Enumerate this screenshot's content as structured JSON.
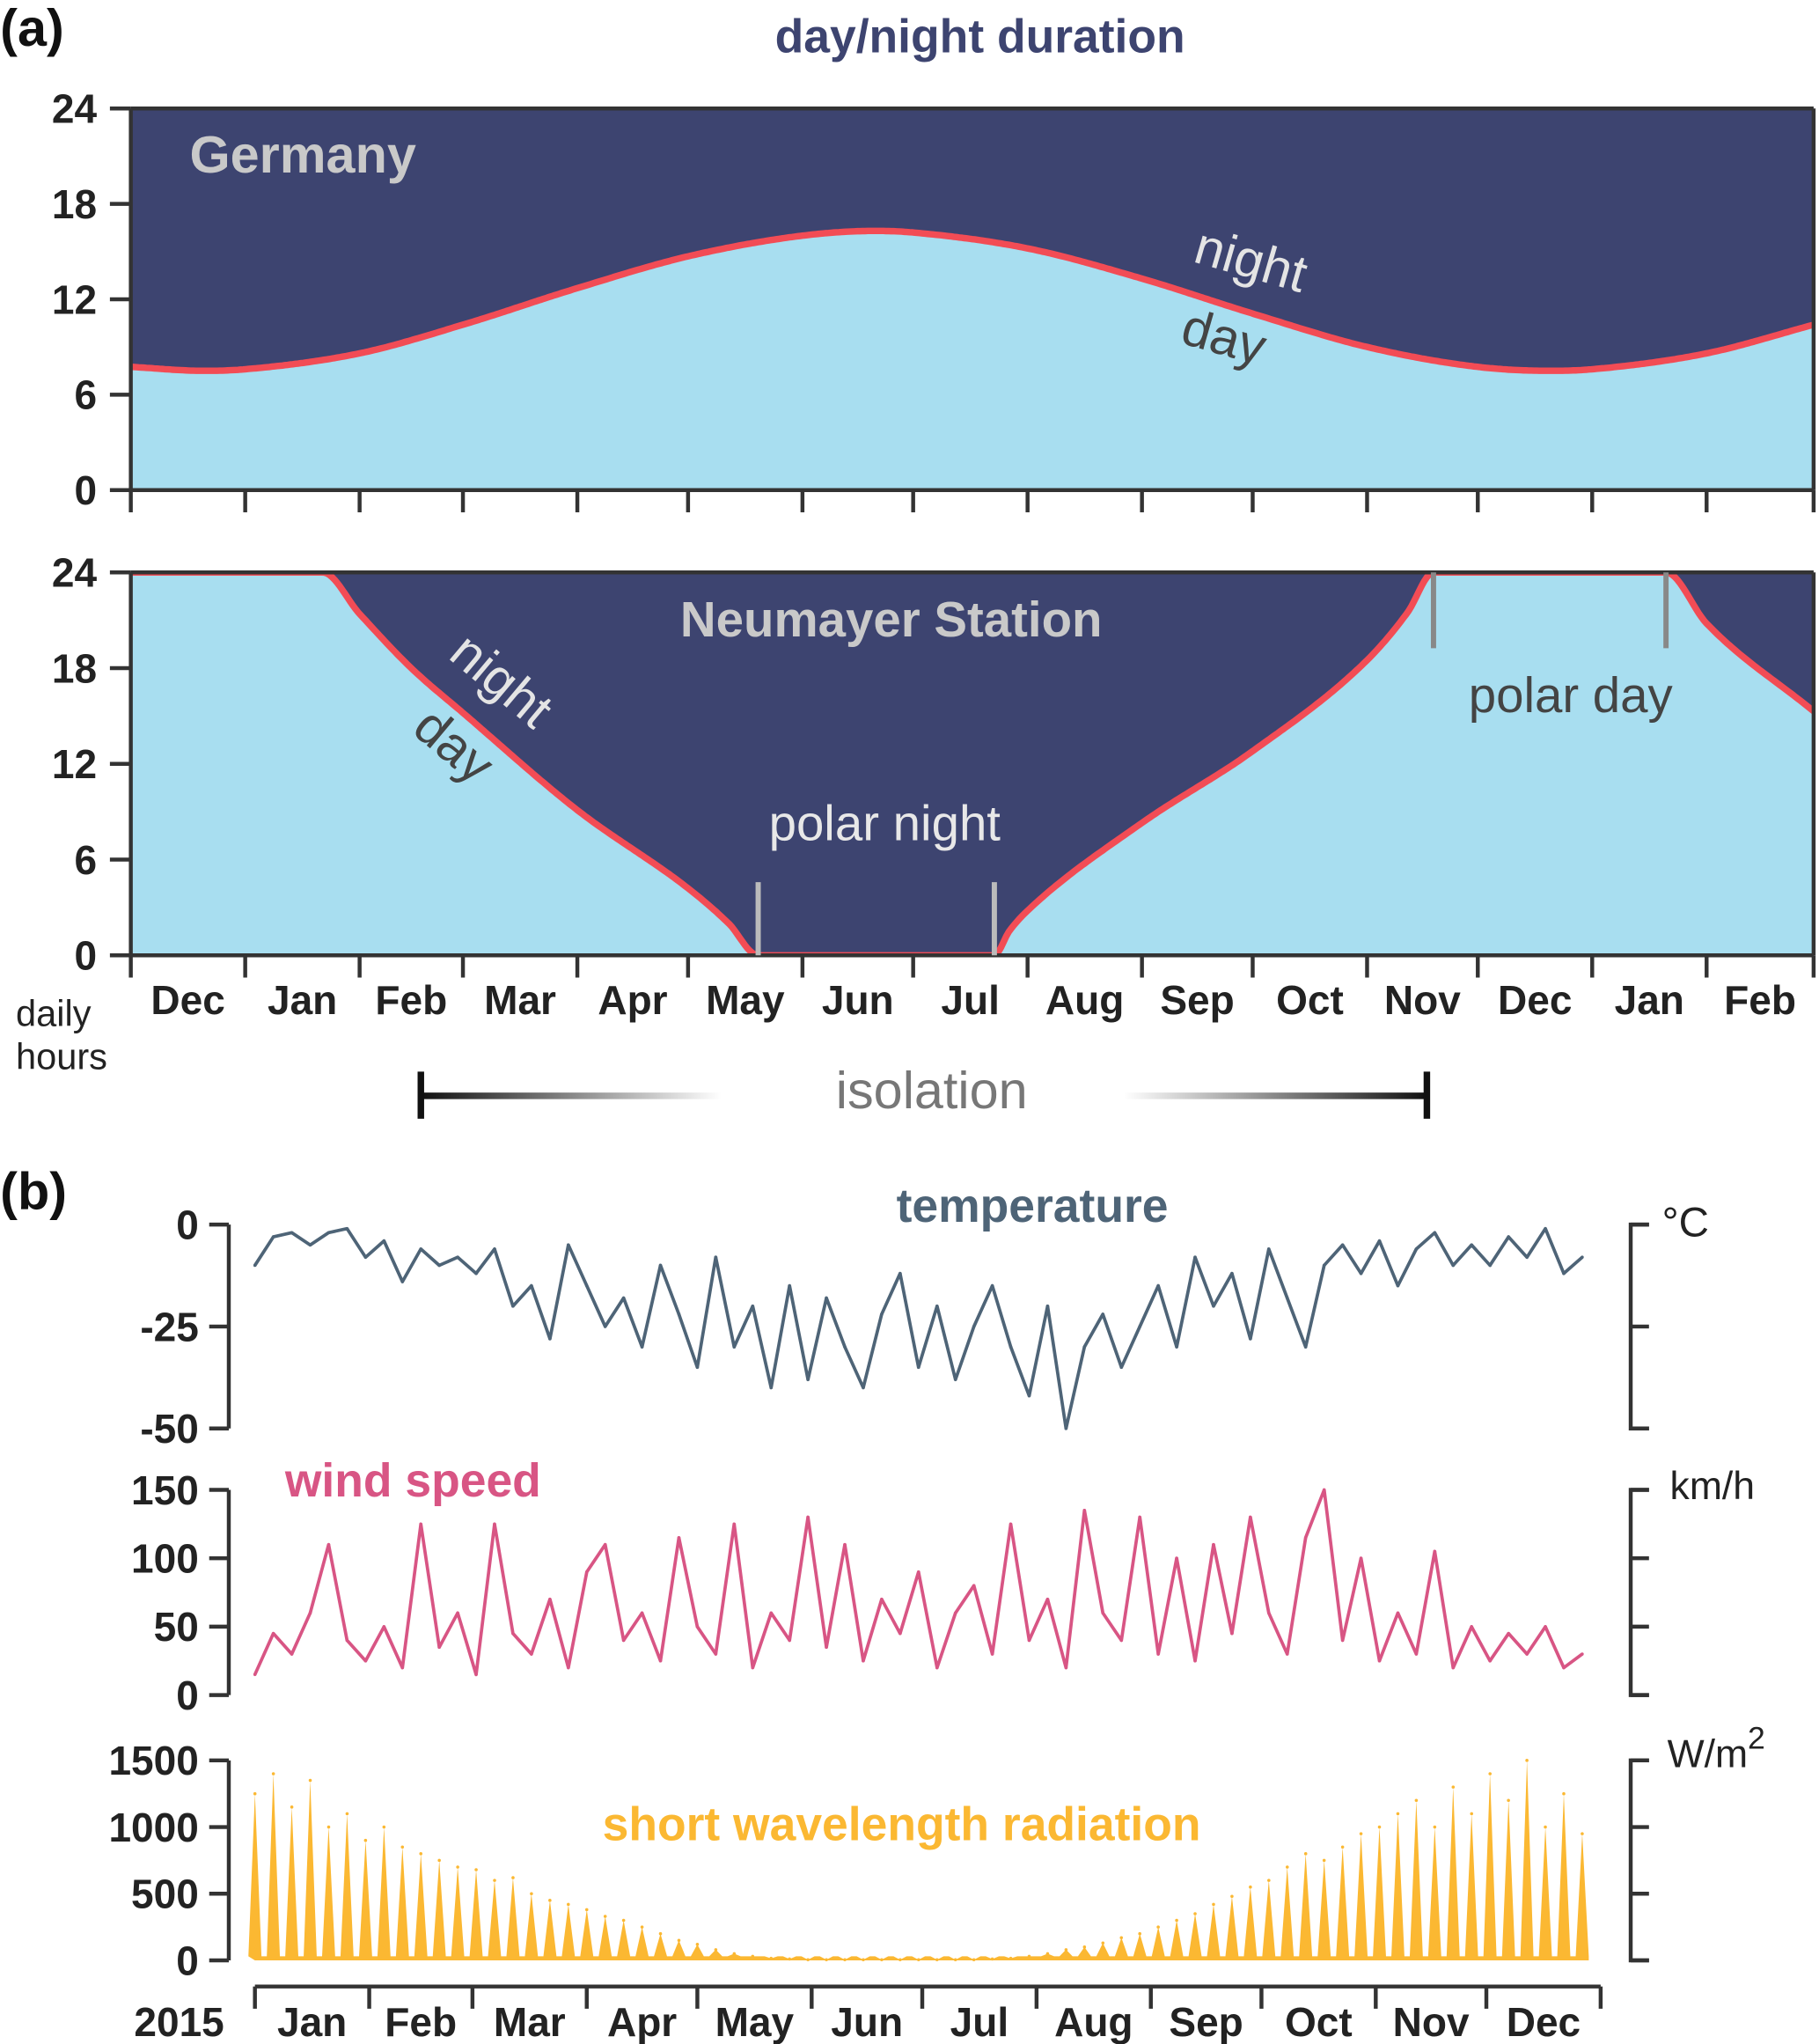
{
  "colors": {
    "night": "#3d4470",
    "day": "#a8def0",
    "daylength_line": "#f24c55",
    "temperature": "#4e6477",
    "wind": "#d85584",
    "radiation": "#fbb832",
    "title": "#3d4470"
  },
  "panel_a": {
    "label": "(a)",
    "title": "day/night duration",
    "y_axis_label_line1": "daily",
    "y_axis_label_line2": "hours",
    "isolation_label": "isolation",
    "isolation_range": [
      "2015-02-01",
      "2015-11-01"
    ]
  },
  "panel_b": {
    "label": "(b)",
    "year_label": "2015"
  },
  "chart_data": [
    {
      "type": "area",
      "title": "Germany",
      "annotations": {
        "night": "night",
        "day": "day"
      },
      "ylim": [
        0,
        24
      ],
      "yticks": [
        "0",
        "6",
        "12",
        "18",
        "24"
      ],
      "xlim": [
        "2014-12-01",
        "2016-03-01"
      ],
      "points": [
        [
          "2014-12-01",
          7.75
        ],
        [
          "2014-12-21",
          7.5
        ],
        [
          "2015-01-01",
          7.6
        ],
        [
          "2015-02-01",
          8.6
        ],
        [
          "2015-03-01",
          10.4
        ],
        [
          "2015-04-01",
          12.7
        ],
        [
          "2015-05-01",
          14.7
        ],
        [
          "2015-06-01",
          16.0
        ],
        [
          "2015-06-21",
          16.3
        ],
        [
          "2015-07-01",
          16.2
        ],
        [
          "2015-08-01",
          15.2
        ],
        [
          "2015-09-01",
          13.3
        ],
        [
          "2015-10-01",
          11.1
        ],
        [
          "2015-11-01",
          9.0
        ],
        [
          "2015-12-01",
          7.75
        ],
        [
          "2015-12-21",
          7.5
        ],
        [
          "2016-01-01",
          7.6
        ],
        [
          "2016-02-01",
          8.6
        ],
        [
          "2016-03-01",
          10.4
        ]
      ]
    },
    {
      "type": "area",
      "title": "Neumayer Station",
      "annotations": {
        "night": "night",
        "day": "day",
        "polar_night": "polar night",
        "polar_day": "polar day"
      },
      "ylim": [
        0,
        24
      ],
      "yticks": [
        "0",
        "6",
        "12",
        "18",
        "24"
      ],
      "xlim": [
        "2014-12-01",
        "2016-03-01"
      ],
      "xticks": [
        "Dec",
        "Jan",
        "Feb",
        "Mar",
        "Apr",
        "May",
        "Jun",
        "Jul",
        "Aug",
        "Sep",
        "Oct",
        "Nov",
        "Dec",
        "Jan",
        "Feb"
      ],
      "polar_night": [
        "2015-05-20",
        "2015-07-23"
      ],
      "polar_day": [
        "2015-11-19",
        "2016-01-21"
      ],
      "points": [
        [
          "2014-12-01",
          24
        ],
        [
          "2015-01-22",
          24
        ],
        [
          "2015-02-01",
          21.4
        ],
        [
          "2015-02-15",
          18
        ],
        [
          "2015-03-01",
          15.2
        ],
        [
          "2015-04-01",
          9.1
        ],
        [
          "2015-05-01",
          4.2
        ],
        [
          "2015-05-12",
          2
        ],
        [
          "2015-05-20",
          0
        ],
        [
          "2015-07-23",
          0
        ],
        [
          "2015-07-27",
          1.5
        ],
        [
          "2015-08-01",
          2.8
        ],
        [
          "2015-09-01",
          8.3
        ],
        [
          "2015-10-01",
          12.8
        ],
        [
          "2015-11-01",
          18.5
        ],
        [
          "2015-11-12",
          21.5
        ],
        [
          "2015-11-19",
          24
        ],
        [
          "2016-01-21",
          24
        ],
        [
          "2016-02-01",
          20.8
        ],
        [
          "2016-03-01",
          15.3
        ]
      ]
    },
    {
      "type": "line",
      "title": "temperature",
      "unit": "°C",
      "ylim": [
        -50,
        0
      ],
      "yticks": [
        "0",
        "-25",
        "-50"
      ],
      "x_start": "2015-01-01",
      "step_days": 5,
      "values": [
        -10,
        -3,
        -2,
        -5,
        -2,
        -1,
        -8,
        -4,
        -14,
        -6,
        -10,
        -8,
        -12,
        -6,
        -20,
        -15,
        -28,
        -5,
        -15,
        -25,
        -18,
        -30,
        -10,
        -22,
        -35,
        -8,
        -30,
        -20,
        -40,
        -15,
        -38,
        -18,
        -30,
        -40,
        -22,
        -12,
        -35,
        -20,
        -38,
        -25,
        -15,
        -30,
        -42,
        -20,
        -50,
        -30,
        -22,
        -35,
        -25,
        -15,
        -30,
        -8,
        -20,
        -12,
        -28,
        -6,
        -18,
        -30,
        -10,
        -5,
        -12,
        -4,
        -15,
        -6,
        -2,
        -10,
        -5,
        -10,
        -3,
        -8,
        -1,
        -12,
        -8
      ]
    },
    {
      "type": "line",
      "title": "wind speed",
      "unit": "km/h",
      "ylim": [
        0,
        150
      ],
      "yticks": [
        "0",
        "50",
        "100",
        "150"
      ],
      "x_start": "2015-01-01",
      "step_days": 5,
      "values": [
        15,
        45,
        30,
        60,
        110,
        40,
        25,
        50,
        20,
        125,
        35,
        60,
        15,
        125,
        45,
        30,
        70,
        20,
        90,
        110,
        40,
        60,
        25,
        115,
        50,
        30,
        125,
        20,
        60,
        40,
        130,
        35,
        110,
        25,
        70,
        45,
        90,
        20,
        60,
        80,
        30,
        125,
        40,
        70,
        20,
        135,
        60,
        40,
        130,
        30,
        100,
        25,
        110,
        45,
        130,
        60,
        30,
        115,
        150,
        40,
        100,
        25,
        60,
        30,
        105,
        20,
        50,
        25,
        45,
        30,
        50,
        20,
        30
      ]
    },
    {
      "type": "area",
      "title": "short wavelength radiation",
      "unit": "W/m",
      "unit_sup": "2",
      "ylim": [
        0,
        1500
      ],
      "yticks": [
        "0",
        "500",
        "1000",
        "1500"
      ],
      "x_start": "2015-01-01",
      "step_days": 5,
      "xticks": [
        "Jan",
        "Feb",
        "Mar",
        "Apr",
        "May",
        "Jun",
        "Jul",
        "Aug",
        "Sep",
        "Oct",
        "Nov",
        "Dec"
      ],
      "values": [
        1250,
        1400,
        1150,
        1350,
        1000,
        1100,
        900,
        1000,
        850,
        800,
        750,
        700,
        680,
        600,
        620,
        500,
        450,
        420,
        380,
        330,
        300,
        250,
        200,
        150,
        120,
        80,
        50,
        30,
        15,
        10,
        5,
        5,
        5,
        5,
        5,
        5,
        5,
        5,
        5,
        5,
        10,
        15,
        30,
        50,
        80,
        100,
        130,
        170,
        200,
        250,
        300,
        350,
        420,
        480,
        550,
        600,
        700,
        800,
        750,
        850,
        950,
        1000,
        1100,
        1200,
        1000,
        1300,
        1100,
        1400,
        1200,
        1500,
        1000,
        1250,
        950
      ]
    }
  ]
}
